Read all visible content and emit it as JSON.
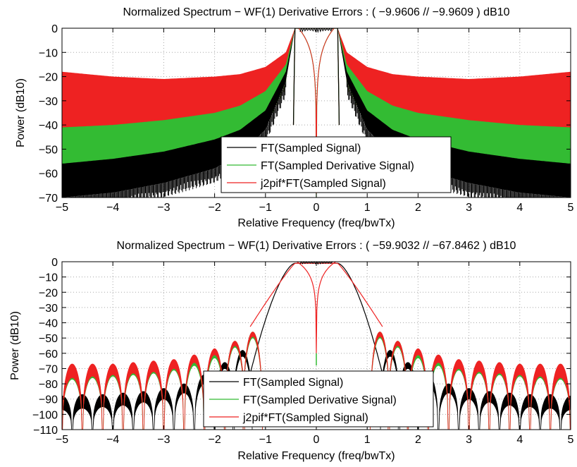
{
  "chart_data": [
    {
      "type": "line",
      "title": "Normalized Spectrum − WF(1) Derivative Errors : ( −9.9606 // −9.9609 ) dB10",
      "xlabel": "Relative Frequency (freq/bwTx)",
      "ylabel": "Power (dB10)",
      "xlim": [
        -5,
        5
      ],
      "ylim": [
        -70,
        0
      ],
      "xticks": [
        -5,
        -4,
        -3,
        -2,
        -1,
        0,
        1,
        2,
        3,
        4,
        5
      ],
      "xtick_labels": [
        "−5",
        "−4",
        "−3",
        "−2",
        "−1",
        "0",
        "1",
        "2",
        "3",
        "4",
        "5"
      ],
      "yticks": [
        0,
        -10,
        -20,
        -30,
        -40,
        -50,
        -60,
        -70
      ],
      "ytick_labels": [
        "0",
        "−10",
        "−20",
        "−30",
        "−40",
        "−50",
        "−60",
        "−70"
      ],
      "grid": true,
      "legend_position": "lower-center",
      "series": [
        {
          "name": "FT(Sampled Signal)",
          "color": "#000000",
          "envelope": {
            "x": [
              0.42,
              0.6,
              1.0,
              1.5,
              2.0,
              3.0,
              4.0,
              5.0
            ],
            "upper": [
              0,
              -18,
              -34,
              -42,
              -46,
              -51,
              -54,
              -56
            ],
            "lower": [
              0,
              -22,
              -42,
              -52,
              -58,
              -64,
              -68,
              -70
            ]
          }
        },
        {
          "name": "FT(Sampled Derivative Signal)",
          "color": "#33bb33",
          "envelope": {
            "x": [
              0.42,
              0.6,
              1.0,
              1.5,
              2.0,
              3.0,
              4.0,
              5.0
            ],
            "upper": [
              0,
              -15,
              -26,
              -32,
              -35,
              -38,
              -40,
              -41
            ],
            "lower": [
              0,
              -20,
              -36,
              -44,
              -48,
              -54,
              -58,
              -60
            ]
          }
        },
        {
          "name": "j2pif*FT(Sampled Signal)",
          "color": "#ee2222",
          "envelope": {
            "x": [
              0.42,
              0.6,
              1.0,
              1.5,
              2.0,
              3.0,
              4.0,
              5.0
            ],
            "upper": [
              0,
              -10,
              -16,
              -19,
              -20,
              -21,
              -20,
              -18
            ],
            "lower": [
              0,
              -20,
              -36,
              -42,
              -46,
              -50,
              -51,
              -52
            ]
          }
        }
      ]
    },
    {
      "type": "line",
      "title": "Normalized Spectrum − WF(1) Derivative Errors : ( −59.9032 // −67.8462 ) dB10",
      "xlabel": "Relative Frequency (freq/bwTx)",
      "ylabel": "Power (dB10)",
      "xlim": [
        -5,
        5
      ],
      "ylim": [
        -110,
        0
      ],
      "xticks": [
        -5,
        -4,
        -3,
        -2,
        -1,
        0,
        1,
        2,
        3,
        4,
        5
      ],
      "xtick_labels": [
        "−5",
        "−4",
        "−3",
        "−2",
        "−1",
        "0",
        "1",
        "2",
        "3",
        "4",
        "5"
      ],
      "yticks": [
        0,
        -10,
        -20,
        -30,
        -40,
        -50,
        -60,
        -70,
        -80,
        -90,
        -100,
        -110
      ],
      "ytick_labels": [
        "0",
        "−10",
        "−20",
        "−30",
        "−40",
        "−50",
        "−60",
        "−70",
        "−80",
        "−90",
        "−100",
        "−110"
      ],
      "grid": true,
      "legend_position": "lower-center",
      "series": [
        {
          "name": "FT(Sampled Signal)",
          "color": "#000000",
          "sidelobe_centers": [
            1.45,
            1.8,
            2.2,
            2.6,
            3.0,
            3.4,
            3.8,
            4.2,
            4.6,
            5.0
          ],
          "sidelobe_peaks_upper": [
            -58,
            -66,
            -74,
            -80,
            -83,
            -85,
            -86,
            -87,
            -87,
            -88
          ],
          "sidelobe_peaks_lower": [
            -62,
            -70,
            -80,
            -86,
            -90,
            -92,
            -94,
            -95,
            -96,
            -97
          ]
        },
        {
          "name": "FT(Sampled Derivative Signal)",
          "color": "#33bb33",
          "sidelobe_centers": [
            1.25,
            1.6,
            2.0,
            2.4,
            2.8,
            3.2,
            3.6,
            4.0,
            4.4,
            4.8
          ],
          "sidelobe_peaks_upper": [
            -46,
            -52,
            -58,
            -62,
            -65,
            -66,
            -67,
            -68,
            -68,
            -68
          ],
          "sidelobe_peaks_lower": [
            -50,
            -56,
            -63,
            -68,
            -71,
            -73,
            -74,
            -75,
            -76,
            -77
          ]
        },
        {
          "name": "j2pif*FT(Sampled Signal)",
          "color": "#ee2222",
          "sidelobe_centers": [
            1.25,
            1.6,
            2.0,
            2.4,
            2.8,
            3.2,
            3.6,
            4.0,
            4.4,
            4.8
          ],
          "sidelobe_peaks_upper": [
            -46,
            -52,
            -57,
            -61,
            -64,
            -65,
            -66,
            -67,
            -67,
            -67
          ],
          "sidelobe_peaks_lower": [
            -49,
            -55,
            -61,
            -66,
            -70,
            -72,
            -73,
            -74,
            -75,
            -76
          ]
        }
      ]
    }
  ]
}
